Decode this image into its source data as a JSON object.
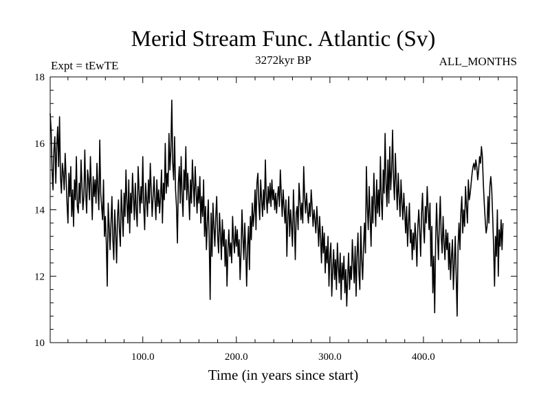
{
  "chart_data": {
    "type": "line",
    "title": "Merid Stream Func. Atlantic (Sv)",
    "subtitle_left": "Expt = tEwTE",
    "subtitle_center": "3272kyr BP",
    "subtitle_right": "ALL_MONTHS",
    "xlabel": "Time (in years since start)",
    "ylabel": "",
    "xlim": [
      1,
      500
    ],
    "ylim": [
      10,
      18
    ],
    "x_ticks": [
      100,
      200,
      300,
      400
    ],
    "x_tick_labels": [
      "100.0",
      "200.0",
      "300.0",
      "400.0"
    ],
    "y_ticks": [
      10,
      12,
      14,
      16,
      18
    ],
    "y_tick_labels": [
      "10",
      "12",
      "14",
      "16",
      "18"
    ],
    "grid": false,
    "series": [
      {
        "name": "Merid Stream Func. Atlantic",
        "color": "#000000",
        "x_start": 1,
        "x_step": 1,
        "values": [
          16.9,
          16.4,
          15.2,
          14.6,
          15.8,
          16.2,
          14.8,
          15.9,
          16.5,
          15.3,
          16.8,
          15.0,
          14.5,
          15.4,
          15.1,
          14.6,
          15.7,
          15.0,
          14.2,
          13.6,
          15.1,
          14.4,
          15.3,
          13.8,
          14.6,
          13.5,
          14.9,
          14.3,
          15.6,
          14.1,
          13.9,
          14.8,
          14.2,
          15.5,
          14.7,
          14.0,
          14.4,
          15.8,
          14.5,
          13.9,
          15.2,
          14.9,
          14.3,
          15.6,
          14.6,
          13.7,
          15.0,
          14.4,
          14.9,
          14.2,
          15.4,
          14.6,
          14.0,
          16.1,
          14.5,
          14.1,
          13.7,
          14.9,
          13.2,
          13.8,
          13.0,
          11.7,
          14.2,
          13.5,
          12.8,
          13.6,
          14.4,
          13.1,
          12.5,
          14.0,
          13.3,
          12.4,
          13.8,
          14.3,
          13.4,
          12.9,
          14.6,
          13.9,
          13.2,
          14.5,
          13.8,
          15.2,
          14.2,
          13.6,
          14.9,
          13.3,
          14.5,
          13.9,
          15.1,
          14.4,
          13.7,
          14.8,
          14.0,
          13.5,
          15.3,
          14.6,
          13.9,
          14.7,
          14.2,
          15.6,
          14.1,
          13.4,
          14.8,
          14.3,
          13.8,
          14.9,
          14.2,
          15.4,
          14.6,
          13.8,
          14.4,
          15.0,
          14.3,
          13.7,
          14.9,
          14.1,
          14.6,
          13.9,
          14.4,
          15.2,
          13.6,
          14.8,
          14.3,
          16.0,
          14.5,
          15.1,
          14.7,
          16.3,
          15.2,
          15.8,
          17.3,
          15.4,
          14.9,
          16.2,
          14.6,
          14.1,
          13.0,
          14.8,
          15.3,
          14.2,
          15.6,
          14.4,
          13.8,
          15.2,
          14.6,
          15.9,
          14.3,
          15.1,
          14.5,
          13.7,
          14.9,
          14.2,
          15.5,
          14.8,
          14.1,
          15.3,
          14.6,
          13.9,
          14.7,
          14.2,
          15.0,
          13.6,
          14.4,
          13.8,
          14.9,
          13.2,
          14.1,
          12.8,
          13.6,
          14.3,
          13.1,
          11.3,
          13.9,
          12.6,
          14.2,
          13.5,
          12.9,
          13.8,
          14.4,
          13.2,
          12.7,
          13.9,
          13.3,
          12.5,
          13.7,
          12.9,
          13.4,
          12.3,
          13.1,
          11.7,
          12.8,
          13.4,
          12.6,
          13.0,
          12.4,
          13.8,
          13.1,
          12.7,
          13.5,
          12.9,
          13.4,
          12.6,
          13.1,
          11.9,
          12.7,
          14.0,
          13.2,
          12.5,
          13.6,
          12.8,
          11.7,
          12.9,
          13.5,
          12.2,
          13.8,
          13.1,
          14.2,
          13.5,
          13.9,
          14.6,
          13.4,
          14.8,
          15.1,
          14.2,
          13.7,
          14.9,
          14.3,
          13.8,
          14.6,
          14.0,
          15.5,
          14.4,
          13.9,
          14.7,
          14.2,
          14.8,
          14.1,
          14.9,
          14.3,
          14.6,
          14.0,
          14.5,
          13.9,
          14.4,
          14.7,
          14.1,
          15.2,
          14.5,
          13.8,
          14.6,
          14.1,
          13.6,
          14.3,
          12.6,
          13.8,
          14.4,
          13.2,
          14.0,
          13.5,
          12.9,
          14.6,
          13.7,
          12.5,
          13.9,
          14.1,
          13.4,
          14.8,
          14.3,
          13.7,
          14.2,
          13.6,
          15.3,
          14.4,
          13.9,
          14.5,
          14.0,
          13.6,
          14.2,
          13.8,
          14.6,
          14.1,
          13.5,
          14.0,
          13.7,
          13.3,
          14.1,
          13.6,
          12.9,
          13.8,
          13.2,
          12.4,
          13.5,
          12.7,
          13.3,
          12.1,
          12.9,
          12.4,
          13.2,
          11.7,
          12.6,
          13.0,
          11.4,
          12.2,
          12.8,
          11.9,
          12.5,
          11.6,
          13.0,
          12.3,
          11.8,
          12.7,
          11.3,
          12.4,
          11.9,
          12.6,
          11.5,
          12.2,
          11.1,
          12.0,
          12.7,
          11.6,
          12.3,
          11.9,
          13.1,
          12.4,
          11.8,
          12.9,
          11.4,
          12.6,
          13.3,
          12.1,
          11.6,
          13.5,
          12.5,
          11.9,
          12.9,
          13.6,
          12.7,
          15.3,
          14.1,
          13.4,
          14.7,
          13.8,
          12.9,
          14.4,
          13.6,
          15.1,
          14.2,
          13.5,
          14.9,
          13.9,
          14.6,
          13.8,
          15.6,
          14.3,
          13.7,
          15.2,
          14.5,
          16.3,
          14.8,
          14.1,
          15.5,
          14.2,
          15.9,
          14.6,
          15.2,
          16.4,
          14.9,
          14.3,
          15.7,
          14.8,
          14.0,
          15.1,
          14.4,
          13.8,
          14.9,
          14.2,
          13.7,
          14.5,
          13.9,
          13.3,
          14.1,
          12.9,
          13.6,
          14.2,
          13.0,
          13.4,
          12.5,
          13.3,
          12.8,
          13.6,
          13.1,
          12.3,
          13.5,
          14.0,
          13.4,
          12.6,
          13.9,
          14.5,
          13.5,
          13.0,
          14.1,
          13.6,
          14.7,
          14.0,
          13.4,
          14.2,
          12.3,
          13.5,
          11.5,
          12.6,
          10.9,
          13.0,
          14.2,
          13.3,
          12.5,
          13.6,
          14.4,
          13.2,
          12.7,
          13.8,
          13.0,
          12.5,
          13.4,
          12.8,
          13.3,
          12.2,
          13.0,
          11.9,
          12.6,
          13.1,
          11.6,
          12.4,
          13.2,
          12.0,
          10.8,
          12.9,
          13.6,
          12.8,
          13.9,
          14.4,
          13.3,
          14.0,
          13.5,
          14.7,
          14.1,
          13.6,
          14.9,
          14.3,
          14.5,
          14.8,
          15.1,
          15.3,
          15.4,
          15.2,
          15.5,
          15.3,
          14.9,
          15.2,
          15.6,
          15.4,
          15.9,
          15.6,
          14.8,
          14.2,
          13.7,
          13.3,
          13.5,
          14.4,
          13.6,
          14.7,
          15.0,
          14.6,
          13.8,
          12.9,
          11.7,
          13.2,
          12.6,
          14.0,
          12.0,
          13.4,
          12.9,
          13.7,
          12.8,
          13.6
        ]
      }
    ]
  }
}
